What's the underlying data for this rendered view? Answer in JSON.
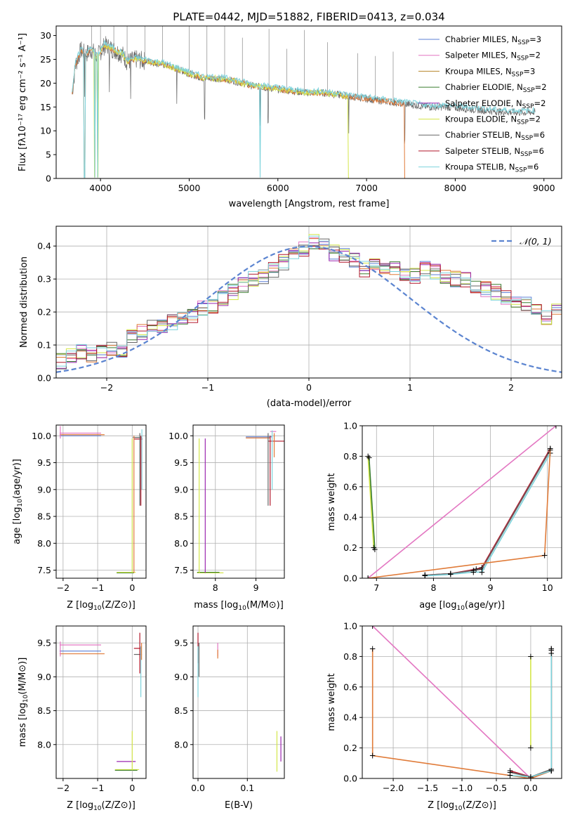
{
  "figure_title": "PLATE=0442, MJD=51882, FIBERID=0413, z=0.034",
  "colors": {
    "chabrier_miles": "#5b7fd6",
    "salpeter_miles": "#e377c2",
    "kroupa_miles": "#b8862b",
    "chabrier_elodie": "#3a7d2f",
    "salpeter_elodie": "#9b27b0",
    "kroupa_elodie": "#d4e64a",
    "chabrier_stelib": "#666666",
    "salpeter_stelib": "#b2182b",
    "kroupa_stelib": "#7dd3dc",
    "orange_model": "#e07b39",
    "normal_curve": "#5b84d0",
    "grid": "#b0b0b0"
  },
  "chart_data": [
    {
      "id": "spectrum",
      "type": "line",
      "title": "PLATE=0442, MJD=51882, FIBERID=0413, z=0.034",
      "xlabel": "wavelength [Angstrom, rest frame]",
      "ylabel": "Flux [fλ10⁻¹⁷ erg cm⁻² s⁻¹ A⁻¹]",
      "xlim": [
        3500,
        9200
      ],
      "ylim": [
        0,
        32
      ],
      "xticks": [
        4000,
        5000,
        6000,
        7000,
        8000,
        9000
      ],
      "yticks": [
        0,
        5,
        10,
        15,
        20,
        25,
        30
      ],
      "grid": false,
      "legend": "top-right",
      "series": [
        {
          "name": "Chabrier MILES, N_SSP=3",
          "legend_main": "Chabrier MILES, N",
          "legend_sub": "SSP",
          "legend_tail": "=3",
          "color_key": "chabrier_miles"
        },
        {
          "name": "Salpeter MILES, N_SSP=2",
          "legend_main": "Salpeter MILES, N",
          "legend_sub": "SSP",
          "legend_tail": "=2",
          "color_key": "salpeter_miles"
        },
        {
          "name": "Kroupa MILES, N_SSP=3",
          "legend_main": "Kroupa MILES, N",
          "legend_sub": "SSP",
          "legend_tail": "=3",
          "color_key": "kroupa_miles"
        },
        {
          "name": "Chabrier ELODIE, N_SSP=2",
          "legend_main": "Chabrier ELODIE, N",
          "legend_sub": "SSP",
          "legend_tail": "=2",
          "color_key": "chabrier_elodie"
        },
        {
          "name": "Salpeter ELODIE, N_SSP=2",
          "legend_main": "Salpeter ELODIE, N",
          "legend_sub": "SSP",
          "legend_tail": "=2",
          "color_key": "salpeter_elodie"
        },
        {
          "name": "Kroupa ELODIE, N_SSP=2",
          "legend_main": "Kroupa ELODIE, N",
          "legend_sub": "SSP",
          "legend_tail": "=2",
          "color_key": "kroupa_elodie"
        },
        {
          "name": "Chabrier STELIB, N_SSP=6",
          "legend_main": "Chabrier STELIB, N",
          "legend_sub": "SSP",
          "legend_tail": "=6",
          "color_key": "chabrier_stelib"
        },
        {
          "name": "Salpeter STELIB, N_SSP=6",
          "legend_main": "Salpeter STELIB, N",
          "legend_sub": "SSP",
          "legend_tail": "=6",
          "color_key": "salpeter_stelib"
        },
        {
          "name": "Kroupa STELIB, N_SSP=6",
          "legend_main": "Kroupa STELIB, N",
          "legend_sub": "SSP",
          "legend_tail": "=6",
          "color_key": "kroupa_stelib"
        }
      ],
      "continuum": [
        [
          3680,
          18
        ],
        [
          3720,
          24
        ],
        [
          3780,
          27
        ],
        [
          3830,
          26
        ],
        [
          3900,
          27
        ],
        [
          3960,
          25.5
        ],
        [
          4050,
          28
        ],
        [
          4150,
          27
        ],
        [
          4250,
          26
        ],
        [
          4300,
          24.5
        ],
        [
          4400,
          25
        ],
        [
          4550,
          24.5
        ],
        [
          4700,
          24
        ],
        [
          4860,
          23
        ],
        [
          5000,
          22
        ],
        [
          5170,
          21
        ],
        [
          5300,
          21
        ],
        [
          5500,
          20.5
        ],
        [
          5700,
          19.5
        ],
        [
          5900,
          19
        ],
        [
          6100,
          18.5
        ],
        [
          6300,
          18
        ],
        [
          6500,
          18
        ],
        [
          6700,
          17.5
        ],
        [
          6900,
          17
        ],
        [
          7100,
          16.5
        ],
        [
          7300,
          16
        ],
        [
          7500,
          15.5
        ],
        [
          7700,
          15
        ],
        [
          7900,
          15
        ],
        [
          8200,
          14.5
        ],
        [
          8500,
          14
        ],
        [
          8800,
          13.8
        ],
        [
          8900,
          14
        ]
      ],
      "models": [
        {
          "color_key": "orange_model",
          "xmin": 3680,
          "xmax": 7430,
          "drop": 7430
        },
        {
          "color_key": "kroupa_elodie",
          "xmin": 3900,
          "xmax": 6800,
          "drop": 6800
        },
        {
          "color_key": "kroupa_stelib",
          "xmin": 3680,
          "xmax": 8900,
          "drop": null
        }
      ],
      "absorption_lines": [
        3820,
        3935,
        3970,
        4100,
        4340,
        4860,
        5175,
        5800,
        5890,
        6800,
        7430
      ],
      "emission_spikes": [
        3900,
        4000,
        4150,
        4300,
        4500,
        4700,
        5000,
        5200,
        5400,
        5600,
        5900,
        6100,
        6300,
        6560,
        6900,
        7100,
        7300
      ]
    },
    {
      "id": "residuals",
      "type": "bar",
      "xlabel": "(data-model)/error",
      "ylabel": "Normed distribution",
      "xlim": [
        -2.5,
        2.5
      ],
      "ylim": [
        0,
        0.46
      ],
      "xticks": [
        -2,
        -1,
        0,
        1,
        2
      ],
      "yticks": [
        0.0,
        0.1,
        0.2,
        0.3,
        0.4
      ],
      "grid": true,
      "legend": "top-right",
      "normal_label": "𝒩(0, 1)",
      "bin_width": 0.1,
      "bins_start": -2.5,
      "hist_base": [
        0.05,
        0.07,
        0.08,
        0.07,
        0.08,
        0.09,
        0.08,
        0.13,
        0.14,
        0.15,
        0.16,
        0.17,
        0.18,
        0.19,
        0.21,
        0.22,
        0.24,
        0.26,
        0.28,
        0.3,
        0.31,
        0.33,
        0.35,
        0.37,
        0.39,
        0.41,
        0.4,
        0.38,
        0.37,
        0.36,
        0.33,
        0.34,
        0.34,
        0.33,
        0.32,
        0.31,
        0.33,
        0.32,
        0.31,
        0.3,
        0.3,
        0.28,
        0.27,
        0.26,
        0.24,
        0.23,
        0.22,
        0.21,
        0.18,
        0.2,
        0.16,
        0.15,
        0.13,
        0.12,
        0.11,
        0.1,
        0.08,
        0.07,
        0.06,
        0.05,
        0.05,
        0.04,
        0.04,
        0.03,
        0.03,
        0.03,
        0.02,
        0.03,
        0.02,
        0.02
      ]
    },
    {
      "id": "age-vs-Z",
      "type": "scatter",
      "xlabel_main": "Z [log",
      "xlabel_sub": "10",
      "xlabel_tail": "(Z/Z⊙)]",
      "ylabel_main": "age  [log",
      "ylabel_sub": "10",
      "ylabel_tail": "(age/yr)]",
      "xlim": [
        -2.2,
        0.4
      ],
      "ylim": [
        7.35,
        10.2
      ],
      "xticks": [
        -2,
        -1,
        0
      ],
      "yticks": [
        7.5,
        8.0,
        8.5,
        9.0,
        9.5,
        10.0
      ],
      "grid": true,
      "hsegs": [
        [
          -2.1,
          -0.9,
          10.05,
          "salpeter_miles"
        ],
        [
          -2.1,
          -0.8,
          10.02,
          "orange_model"
        ],
        [
          -2.1,
          -0.9,
          10.0,
          "chabrier_miles"
        ],
        [
          -0.45,
          0.05,
          7.45,
          "chabrier_elodie"
        ],
        [
          -0.45,
          0.1,
          7.46,
          "kroupa_elodie"
        ],
        [
          0.02,
          0.28,
          9.97,
          "chabrier_stelib"
        ],
        [
          0.05,
          0.3,
          9.94,
          "salpeter_stelib"
        ]
      ],
      "vsegs": [
        [
          -2.08,
          9.95,
          10.18,
          "salpeter_miles"
        ],
        [
          0.0,
          7.45,
          9.95,
          "kroupa_elodie"
        ],
        [
          0.05,
          7.45,
          10.0,
          "orange_model"
        ],
        [
          0.22,
          8.7,
          10.05,
          "chabrier_stelib"
        ],
        [
          0.25,
          8.7,
          10.0,
          "salpeter_stelib"
        ],
        [
          0.28,
          9.0,
          10.12,
          "kroupa_stelib"
        ]
      ]
    },
    {
      "id": "age-vs-mass",
      "type": "scatter",
      "xlabel_main": "mass [log",
      "xlabel_sub": "10",
      "xlabel_tail": "(M/M⊙)]",
      "xlim": [
        7.45,
        9.7
      ],
      "ylim": [
        7.35,
        10.2
      ],
      "xticks": [
        8,
        9
      ],
      "yticks": [
        7.5,
        8.0,
        8.5,
        9.0,
        9.5,
        10.0
      ],
      "grid": true,
      "hsegs": [
        [
          7.55,
          8.2,
          7.45,
          "kroupa_elodie"
        ],
        [
          7.55,
          8.1,
          7.46,
          "chabrier_elodie"
        ],
        [
          8.75,
          9.4,
          9.98,
          "chabrier_miles"
        ],
        [
          8.75,
          9.35,
          9.96,
          "orange_model"
        ],
        [
          9.3,
          9.7,
          9.9,
          "salpeter_stelib"
        ],
        [
          9.35,
          9.5,
          10.08,
          "salpeter_miles"
        ]
      ],
      "vsegs": [
        [
          7.6,
          7.45,
          9.95,
          "kroupa_elodie"
        ],
        [
          7.75,
          7.45,
          9.95,
          "salpeter_elodie"
        ],
        [
          9.3,
          8.7,
          10.05,
          "chabrier_stelib"
        ],
        [
          9.35,
          8.7,
          10.0,
          "salpeter_stelib"
        ],
        [
          9.4,
          9.0,
          10.1,
          "kroupa_stelib"
        ],
        [
          9.45,
          9.6,
          10.05,
          "orange_model"
        ]
      ]
    },
    {
      "id": "weight-vs-age",
      "type": "line",
      "xlabel_main": "age  [log",
      "xlabel_sub": "10",
      "xlabel_tail": "(age/yr)]",
      "ylabel": "mass weight",
      "xlim": [
        6.75,
        10.25
      ],
      "ylim": [
        0,
        1.0
      ],
      "xticks": [
        7,
        8,
        9,
        10
      ],
      "yticks": [
        0.0,
        0.2,
        0.4,
        0.6,
        0.8,
        1.0
      ],
      "grid": true,
      "series": [
        {
          "color_key": "salpeter_miles",
          "points": [
            [
              6.85,
              0.0
            ],
            [
              10.15,
              1.0
            ]
          ]
        },
        {
          "color_key": "kroupa_elodie",
          "points": [
            [
              6.85,
              0.8
            ],
            [
              6.95,
              0.2
            ]
          ]
        },
        {
          "color_key": "chabrier_elodie",
          "points": [
            [
              6.87,
              0.79
            ],
            [
              6.97,
              0.19
            ]
          ]
        },
        {
          "color_key": "salpeter_stelib",
          "points": [
            [
              7.85,
              0.02
            ],
            [
              8.3,
              0.03
            ],
            [
              8.75,
              0.06
            ],
            [
              8.85,
              0.07
            ],
            [
              10.05,
              0.85
            ]
          ]
        },
        {
          "color_key": "chabrier_stelib",
          "points": [
            [
              7.85,
              0.02
            ],
            [
              8.3,
              0.03
            ],
            [
              8.7,
              0.05
            ],
            [
              8.85,
              0.06
            ],
            [
              10.05,
              0.84
            ]
          ]
        },
        {
          "color_key": "kroupa_stelib",
          "points": [
            [
              7.85,
              0.015
            ],
            [
              8.3,
              0.025
            ],
            [
              8.7,
              0.04
            ],
            [
              8.85,
              0.04
            ],
            [
              10.05,
              0.82
            ]
          ]
        },
        {
          "color_key": "orange_model",
          "points": [
            [
              6.85,
              0.0
            ],
            [
              9.95,
              0.15
            ],
            [
              10.05,
              0.85
            ]
          ]
        }
      ]
    },
    {
      "id": "mass-vs-Z",
      "type": "scatter",
      "xlabel_main": "Z [log",
      "xlabel_sub": "10",
      "xlabel_tail": "(Z/Z⊙)]",
      "ylabel_main": "mass [log",
      "ylabel_sub": "10",
      "ylabel_tail": "(M/M⊙)]",
      "xlim": [
        -2.2,
        0.4
      ],
      "ylim": [
        7.5,
        9.75
      ],
      "xticks": [
        -2,
        -1,
        0
      ],
      "yticks": [
        8.0,
        8.5,
        9.0,
        9.5
      ],
      "grid": true,
      "hsegs": [
        [
          -2.1,
          -0.9,
          9.47,
          "salpeter_miles"
        ],
        [
          -2.1,
          -0.9,
          9.38,
          "chabrier_miles"
        ],
        [
          -2.1,
          -0.8,
          9.34,
          "orange_model"
        ],
        [
          -0.45,
          0.1,
          7.75,
          "salpeter_elodie"
        ],
        [
          -0.5,
          0.2,
          7.63,
          "kroupa_elodie"
        ],
        [
          -0.5,
          0.15,
          7.62,
          "chabrier_elodie"
        ],
        [
          0.05,
          0.25,
          9.42,
          "salpeter_stelib"
        ],
        [
          0.05,
          0.28,
          9.33,
          "chabrier_stelib"
        ]
      ],
      "vsegs": [
        [
          -2.08,
          9.3,
          9.52,
          "salpeter_miles"
        ],
        [
          0.0,
          7.62,
          8.2,
          "kroupa_elodie"
        ],
        [
          0.22,
          9.05,
          9.65,
          "salpeter_stelib"
        ],
        [
          0.25,
          8.7,
          9.45,
          "kroupa_stelib"
        ],
        [
          0.27,
          9.25,
          9.5,
          "orange_model"
        ]
      ]
    },
    {
      "id": "mass-vs-EBV",
      "type": "scatter",
      "xlabel": "E(B-V)",
      "xlim": [
        -0.01,
        0.175
      ],
      "ylim": [
        7.5,
        9.75
      ],
      "xticks": [
        0.0,
        0.1
      ],
      "yticks": [
        8.0,
        8.5,
        9.0,
        9.5
      ],
      "grid": true,
      "vsegs": [
        [
          0.0,
          9.2,
          9.65,
          "salpeter_stelib"
        ],
        [
          0.0,
          8.7,
          9.45,
          "kroupa_stelib"
        ],
        [
          0.002,
          9.0,
          9.5,
          "chabrier_stelib"
        ],
        [
          0.04,
          9.3,
          9.5,
          "salpeter_miles"
        ],
        [
          0.04,
          9.27,
          9.4,
          "orange_model"
        ],
        [
          0.16,
          7.6,
          8.2,
          "kroupa_elodie"
        ],
        [
          0.168,
          7.75,
          8.12,
          "salpeter_elodie"
        ]
      ]
    },
    {
      "id": "weight-vs-Z",
      "type": "line",
      "xlabel_main": "Z [log",
      "xlabel_sub": "10",
      "xlabel_tail": "(Z/Z⊙)]",
      "ylabel": "mass weight",
      "xlim": [
        -2.45,
        0.45
      ],
      "ylim": [
        0,
        1.0
      ],
      "xticks": [
        -2.0,
        -1.5,
        -1.0,
        -0.5,
        0.0
      ],
      "yticks": [
        0.0,
        0.2,
        0.4,
        0.6,
        0.8,
        1.0
      ],
      "grid": true,
      "series": [
        {
          "color_key": "salpeter_miles",
          "points": [
            [
              -2.3,
              1.0
            ],
            [
              0.0,
              0.0
            ]
          ]
        },
        {
          "color_key": "kroupa_elodie",
          "points": [
            [
              0.0,
              0.8
            ],
            [
              0.0,
              0.2
            ]
          ]
        },
        {
          "color_key": "orange_model",
          "points": [
            [
              -2.3,
              0.85
            ],
            [
              -2.3,
              0.15
            ],
            [
              0.0,
              0.0
            ],
            [
              0.3,
              0.05
            ],
            [
              0.3,
              0.85
            ]
          ]
        },
        {
          "color_key": "salpeter_stelib",
          "points": [
            [
              -0.3,
              0.05
            ],
            [
              0.0,
              0.01
            ],
            [
              0.3,
              0.05
            ],
            [
              0.3,
              0.84
            ]
          ]
        },
        {
          "color_key": "chabrier_stelib",
          "points": [
            [
              -0.3,
              0.04
            ],
            [
              0.0,
              0.01
            ],
            [
              0.3,
              0.06
            ],
            [
              0.3,
              0.85
            ]
          ]
        },
        {
          "color_key": "kroupa_stelib",
          "points": [
            [
              -0.3,
              0.02
            ],
            [
              0.0,
              0.01
            ],
            [
              0.3,
              0.05
            ],
            [
              0.3,
              0.82
            ]
          ]
        }
      ]
    }
  ]
}
